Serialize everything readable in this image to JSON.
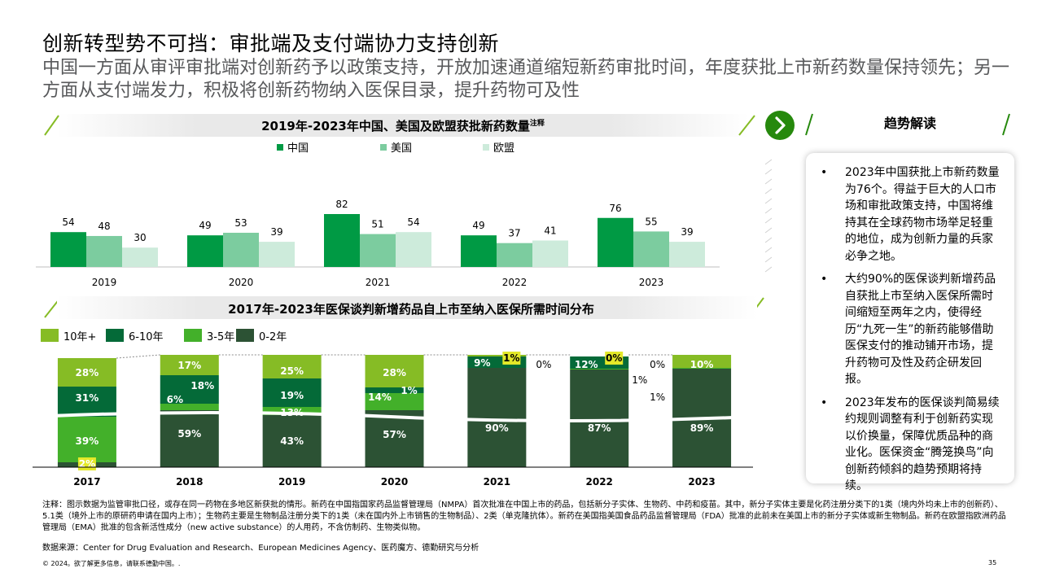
{
  "title": "创新转型势不可挡：审批端及支付端协力支持创新",
  "subtitle": "中国一方面从审评审批端对创新药予以政策支持，开放加速通道缩短新药审批时间，年度获批上市新药数量保持领先；另一方面从支付端发力，积极将创新药物纳入医保目录，提升药物可及性",
  "colors": {
    "green_dark": "#009a44",
    "green_mid": "#7ccc9f",
    "green_light": "#cdebdb",
    "bar_10plus": "#86bc25",
    "bar_6to10": "#046a38",
    "bar_3to5": "#43b02a",
    "bar_0to2": "#2c5234",
    "accent": "#26890d",
    "highlight": "#e3e829"
  },
  "chart_data": [
    {
      "type": "bar",
      "title": "2019年-2023年中国、美国及欧盟获批新药数量",
      "title_sup": "注释",
      "categories": [
        "2019",
        "2020",
        "2021",
        "2022",
        "2023"
      ],
      "series": [
        {
          "name": "中国",
          "values": [
            54,
            49,
            82,
            49,
            76
          ]
        },
        {
          "name": "美国",
          "values": [
            48,
            53,
            51,
            37,
            55
          ]
        },
        {
          "name": "欧盟",
          "values": [
            30,
            39,
            54,
            41,
            39
          ]
        }
      ],
      "ylim": [
        0,
        90
      ]
    },
    {
      "type": "bar",
      "stacked": true,
      "title": "2017年-2023年医保谈判新增药品自上市至纳入医保所需时间分布",
      "categories": [
        "2017",
        "2018",
        "2019",
        "2020",
        "2021",
        "2022",
        "2023"
      ],
      "series": [
        {
          "name": "0-2年",
          "values": [
            2,
            59,
            43,
            57,
            90,
            87,
            89
          ]
        },
        {
          "name": "3-5年",
          "values": [
            39,
            6,
            13,
            14,
            0,
            1,
            1
          ]
        },
        {
          "name": "6-10年",
          "values": [
            31,
            18,
            19,
            1,
            9,
            12,
            0
          ]
        },
        {
          "name": "10年+",
          "values": [
            28,
            17,
            25,
            28,
            1,
            0,
            10
          ]
        }
      ],
      "value_labels": [
        {
          "0-2年": "2%",
          "3-5年": "39%",
          "6-10年": "31%",
          "10年+": "28%"
        },
        {
          "0-2年": "59%",
          "3-5年": "6%",
          "6-10年": "18%",
          "10年+": "17%"
        },
        {
          "0-2年": "43%",
          "3-5年": "13%",
          "6-10年": "19%",
          "10年+": "25%"
        },
        {
          "0-2年": "57%",
          "3-5年": "14%",
          "6-10年": "1%",
          "10年+": "28%"
        },
        {
          "0-2年": "90%",
          "3-5年": "0%",
          "6-10年": "9%",
          "10年+": "1%"
        },
        {
          "0-2年": "87%",
          "3-5年": "1%",
          "6-10年": "12%",
          "10年+": "0%"
        },
        {
          "0-2年": "89%",
          "3-5年": "1%",
          "6-10年": "0%",
          "10年+": "10%"
        }
      ]
    }
  ],
  "right_panel": {
    "heading": "趋势解读",
    "bullet_symbol": "•",
    "bullets": [
      "2023年中国获批上市新药数量为76个。得益于巨大的人口市场和审批政策支持，中国将维持其在全球药物市场举足轻重的地位，成为创新力量的兵家必争之地。",
      "大约90%的医保谈判新增药品自获批上市至纳入医保所需时间缩短至两年之内，使得经历“九死一生”的新药能够借助医保支付的推动铺开市场，提升药物可及性及药企研发回报。",
      "2023年发布的医保谈判简易续约规则调整有利于创新药实现以价换量，保障优质品种的商业化。医保资金“腾笼换鸟”向创新药倾斜的趋势预期将持续。"
    ]
  },
  "note": "注释：图示数据为监管审批口径，或存在同一药物在多地区新获批的情形。新药在中国指国家药品监督管理局（NMPA）首次批准在中国上市的药品，包括新分子实体、生物药、中药和疫苗。其中，新分子实体主要是化药注册分类下的1类（境内外均未上市的创新药）、5.1类（境外上市的原研药申请在国内上市）；生物药主要是生物制品注册分类下的1类（未在国内外上市销售的生物制品）、2类（单克隆抗体）。新药在美国指美国食品药品监督管理局（FDA）批准的此前未在美国上市的新分子实体或新生物制品。新药在欧盟指欧洲药品管理局（EMA）批准的包含新活性成分（new active substance）的人用药，不含仿制药、生物类似物。",
  "source": "数据来源：Center for Drug Evaluation and Research、European Medicines Agency、医药魔方、德勤研究与分析",
  "copyright": "© 2024。欲了解更多信息，请联系德勤中国。.",
  "page_number": "35"
}
